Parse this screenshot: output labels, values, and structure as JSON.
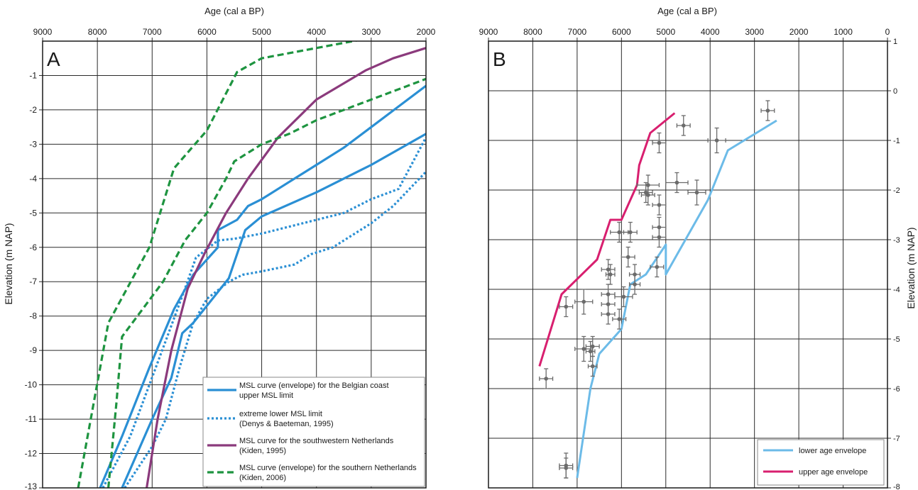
{
  "chart_data": [
    {
      "panel_label": "A",
      "type": "line",
      "xlabel": "Age (cal a BP)",
      "ylabel": "Elevation (m NAP)",
      "x_reversed": true,
      "xlim": [
        9000,
        2000
      ],
      "ylim": [
        -13,
        0
      ],
      "x_ticks": [
        "9000",
        "8000",
        "7000",
        "6000",
        "5000",
        "4000",
        "3000",
        "2000"
      ],
      "y_ticks": [
        "-1",
        "-2",
        "-3",
        "-4",
        "-5",
        "-6",
        "-7",
        "-8",
        "-9",
        "-10",
        "-11",
        "-12",
        "-13"
      ],
      "grid": true,
      "legend_position": "bottom-right",
      "legend": [
        {
          "key": "belgian",
          "lines": [
            "MSL curve (envelope) for the Belgian coast",
            "upper MSL limit"
          ],
          "color": "#2a8fd4",
          "style": "solid"
        },
        {
          "key": "extreme",
          "lines": [
            "extreme lower MSL limit",
            "(Denys & Baeteman, 1995)"
          ],
          "color": "#2a8fd4",
          "style": "dotted"
        },
        {
          "key": "sw",
          "lines": [
            "MSL curve for the southwestern Netherlands",
            "(Kiden, 1995)"
          ],
          "color": "#8b3a7c",
          "style": "solid"
        },
        {
          "key": "south",
          "lines": [
            "MSL curve (envelope) for the southern Netherlands",
            "(Kiden, 2006)"
          ],
          "color": "#1e9440",
          "style": "dashed"
        }
      ],
      "series": [
        {
          "key": "belgian",
          "color": "#2a8fd4",
          "style": "solid",
          "x": [
            7950,
            7550,
            7050,
            6600,
            6250,
            5800,
            5800,
            5450,
            5250,
            5000,
            4500,
            4000,
            3500,
            3000,
            2500,
            2000
          ],
          "y": [
            -13,
            -11.5,
            -9.5,
            -7.8,
            -6.8,
            -6.0,
            -5.5,
            -5.2,
            -4.8,
            -4.6,
            -4.1,
            -3.6,
            -3.1,
            -2.5,
            -1.9,
            -1.3
          ]
        },
        {
          "key": "belgian",
          "color": "#2a8fd4",
          "style": "solid",
          "x": [
            7550,
            7000,
            6650,
            6450,
            6250,
            6000,
            5600,
            5300,
            5000,
            4000,
            3000,
            2000
          ],
          "y": [
            -13,
            -11.0,
            -9.8,
            -8.5,
            -8.2,
            -7.7,
            -6.9,
            -5.5,
            -5.1,
            -4.4,
            -3.6,
            -2.7
          ]
        },
        {
          "key": "extreme",
          "color": "#2a8fd4",
          "style": "dotted",
          "x": [
            7900,
            7400,
            7050,
            6700,
            6400,
            6200,
            5800,
            5500,
            5000,
            4500,
            4000,
            3500,
            3000,
            2500,
            2000
          ],
          "y": [
            -13,
            -11.5,
            -10,
            -8.5,
            -7.2,
            -6.3,
            -5.8,
            -5.75,
            -5.6,
            -5.4,
            -5.2,
            -5.0,
            -4.6,
            -4.3,
            -2.8
          ]
        },
        {
          "key": "extreme",
          "color": "#2a8fd4",
          "style": "dotted",
          "x": [
            7500,
            7000,
            6750,
            6500,
            6250,
            6000,
            5600,
            5350,
            5000,
            4400,
            4100,
            3700,
            3000,
            2600,
            2000
          ],
          "y": [
            -13,
            -11.8,
            -11.0,
            -9.5,
            -8.2,
            -7.5,
            -7.0,
            -6.8,
            -6.7,
            -6.5,
            -6.2,
            -6.0,
            -5.3,
            -4.8,
            -3.8
          ]
        },
        {
          "key": "sw",
          "color": "#8b3a7c",
          "style": "solid",
          "x": [
            7100,
            6900,
            6650,
            6350,
            6050,
            5650,
            5250,
            4700,
            4000,
            3100,
            2600,
            2000
          ],
          "y": [
            -13,
            -11.0,
            -9.0,
            -7.2,
            -6.2,
            -5.0,
            -4.0,
            -2.8,
            -1.7,
            -0.85,
            -0.5,
            -0.2
          ]
        },
        {
          "key": "south",
          "color": "#1e9440",
          "style": "dashed",
          "x": [
            8350,
            7800,
            7050,
            6600,
            6000,
            5450,
            5000,
            4000,
            3000,
            2000
          ],
          "y": [
            -13,
            -8.2,
            -6.0,
            -3.7,
            -2.6,
            -0.9,
            -0.5,
            -0.2,
            0.1,
            0.15
          ]
        },
        {
          "key": "south",
          "color": "#1e9440",
          "style": "dashed",
          "x": [
            7800,
            7650,
            7550,
            6800,
            6400,
            6000,
            5650,
            5500,
            5000,
            4500,
            4000,
            3000,
            2000
          ],
          "y": [
            -13,
            -10.5,
            -8.6,
            -7.0,
            -5.8,
            -5.0,
            -4.0,
            -3.5,
            -3.0,
            -2.7,
            -2.3,
            -1.7,
            -1.1
          ]
        }
      ]
    },
    {
      "panel_label": "B",
      "type": "scatter",
      "xlabel": "Age (cal a BP)",
      "ylabel": "Elevation (m NAP)",
      "x_reversed": true,
      "xlim": [
        9000,
        0
      ],
      "ylim": [
        -8,
        1
      ],
      "x_ticks": [
        "9000",
        "8000",
        "7000",
        "6000",
        "5000",
        "4000",
        "3000",
        "2000",
        "1000",
        "0"
      ],
      "y_ticks": [
        "1",
        "0",
        "-1",
        "-2",
        "-3",
        "-4",
        "-5",
        "-6",
        "-7",
        "-8"
      ],
      "y_axis_side": "right",
      "grid": true,
      "legend_position": "bottom-right",
      "legend": [
        {
          "key": "lower",
          "label": "lower age envelope",
          "color": "#6cbbe8"
        },
        {
          "key": "upper",
          "label": "upper age envelope",
          "color": "#d81f6f"
        }
      ],
      "series": [
        {
          "key": "lower",
          "name": "lower age envelope",
          "color": "#6cbbe8",
          "x": [
            2500,
            3600,
            4050,
            5000,
            5000,
            5450,
            5800,
            6000,
            6500,
            6700,
            7000
          ],
          "y": [
            -0.6,
            -1.2,
            -2.2,
            -3.7,
            -3.1,
            -3.7,
            -3.9,
            -4.8,
            -5.3,
            -6.0,
            -7.8
          ]
        },
        {
          "key": "upper",
          "name": "upper age envelope",
          "color": "#d81f6f",
          "x": [
            4800,
            5350,
            5600,
            5650,
            6000,
            6250,
            6550,
            7350,
            7850
          ],
          "y": [
            -0.45,
            -0.85,
            -1.5,
            -1.9,
            -2.6,
            -2.6,
            -3.4,
            -4.1,
            -5.55
          ]
        },
        {
          "name": "",
          "color": "#6b6b6b",
          "points": [
            {
              "x": 2700,
              "y": -0.4,
              "xerr": 150,
              "yerr": 0.2
            },
            {
              "x": 4600,
              "y": -0.7,
              "xerr": 150,
              "yerr": 0.2
            },
            {
              "x": 5150,
              "y": -1.05,
              "xerr": 150,
              "yerr": 0.2
            },
            {
              "x": 3850,
              "y": -1.0,
              "xerr": 200,
              "yerr": 0.25
            },
            {
              "x": 5400,
              "y": -1.9,
              "xerr": 250,
              "yerr": 0.2
            },
            {
              "x": 5450,
              "y": -2.05,
              "xerr": 150,
              "yerr": 0.2
            },
            {
              "x": 5400,
              "y": -2.1,
              "xerr": 150,
              "yerr": 0.2
            },
            {
              "x": 4750,
              "y": -1.85,
              "xerr": 250,
              "yerr": 0.2
            },
            {
              "x": 4300,
              "y": -2.05,
              "xerr": 200,
              "yerr": 0.25
            },
            {
              "x": 5150,
              "y": -2.3,
              "xerr": 150,
              "yerr": 0.2
            },
            {
              "x": 5150,
              "y": -2.75,
              "xerr": 150,
              "yerr": 0.2
            },
            {
              "x": 5150,
              "y": -2.95,
              "xerr": 150,
              "yerr": 0.2
            },
            {
              "x": 6050,
              "y": -2.85,
              "xerr": 200,
              "yerr": 0.2
            },
            {
              "x": 5800,
              "y": -2.85,
              "xerr": 150,
              "yerr": 0.2
            },
            {
              "x": 5850,
              "y": -3.35,
              "xerr": 150,
              "yerr": 0.2
            },
            {
              "x": 5200,
              "y": -3.55,
              "xerr": 150,
              "yerr": 0.2
            },
            {
              "x": 6300,
              "y": -3.6,
              "xerr": 150,
              "yerr": 0.2
            },
            {
              "x": 6250,
              "y": -3.7,
              "xerr": 100,
              "yerr": 0.2
            },
            {
              "x": 5700,
              "y": -3.7,
              "xerr": 120,
              "yerr": 0.2
            },
            {
              "x": 5700,
              "y": -3.9,
              "xerr": 120,
              "yerr": 0.2
            },
            {
              "x": 6300,
              "y": -4.1,
              "xerr": 150,
              "yerr": 0.2
            },
            {
              "x": 5950,
              "y": -4.15,
              "xerr": 200,
              "yerr": 0.2
            },
            {
              "x": 6300,
              "y": -4.3,
              "xerr": 150,
              "yerr": 0.2
            },
            {
              "x": 6850,
              "y": -4.25,
              "xerr": 200,
              "yerr": 0.25
            },
            {
              "x": 7250,
              "y": -4.35,
              "xerr": 150,
              "yerr": 0.2
            },
            {
              "x": 6300,
              "y": -4.5,
              "xerr": 150,
              "yerr": 0.2
            },
            {
              "x": 6050,
              "y": -4.6,
              "xerr": 150,
              "yerr": 0.2
            },
            {
              "x": 6850,
              "y": -5.2,
              "xerr": 200,
              "yerr": 0.25
            },
            {
              "x": 6650,
              "y": -5.15,
              "xerr": 150,
              "yerr": 0.2
            },
            {
              "x": 6700,
              "y": -5.25,
              "xerr": 100,
              "yerr": 0.2
            },
            {
              "x": 6650,
              "y": -5.55,
              "xerr": 100,
              "yerr": 0.2
            },
            {
              "x": 7700,
              "y": -5.8,
              "xerr": 150,
              "yerr": 0.2
            },
            {
              "x": 7250,
              "y": -7.55,
              "xerr": 150,
              "yerr": 0.25
            },
            {
              "x": 7250,
              "y": -7.6,
              "xerr": 150,
              "yerr": 0.2
            }
          ]
        }
      ]
    }
  ]
}
